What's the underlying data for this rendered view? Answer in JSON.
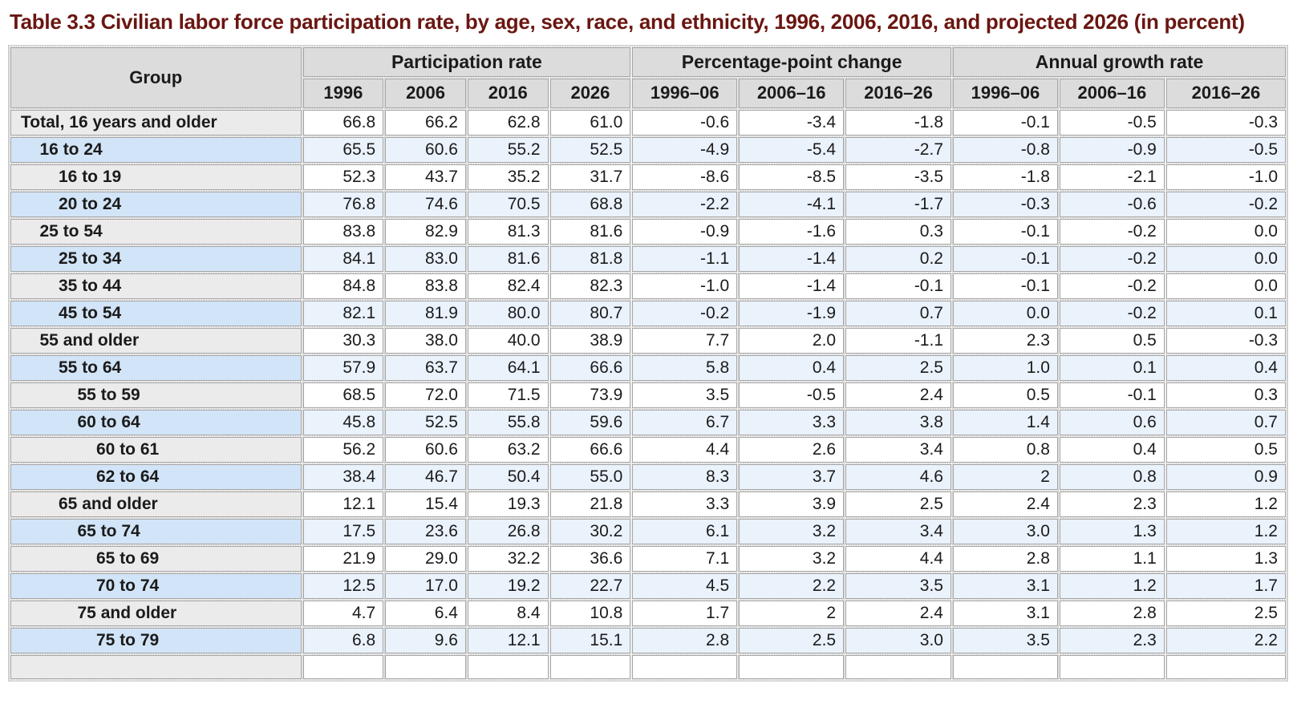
{
  "title": "Table 3.3 Civilian labor force participation rate, by age, sex, race, and ethnicity, 1996, 2006, 2016, and projected 2026 (in percent)",
  "columns": {
    "group_header": "Group",
    "spans": [
      {
        "label": "Participation rate",
        "sub": [
          "1996",
          "2006",
          "2016",
          "2026"
        ]
      },
      {
        "label": "Percentage-point change",
        "sub": [
          "1996–06",
          "2006–16",
          "2016–26"
        ]
      },
      {
        "label": "Annual growth rate",
        "sub": [
          "1996–06",
          "2006–16",
          "2016–26"
        ]
      }
    ]
  },
  "rows": [
    {
      "group": "Total, 16 years and older",
      "indent": 0,
      "values": [
        "66.8",
        "66.2",
        "62.8",
        "61.0",
        "-0.6",
        "-3.4",
        "-1.8",
        "-0.1",
        "-0.5",
        "-0.3"
      ]
    },
    {
      "group": "16 to 24",
      "indent": 1,
      "values": [
        "65.5",
        "60.6",
        "55.2",
        "52.5",
        "-4.9",
        "-5.4",
        "-2.7",
        "-0.8",
        "-0.9",
        "-0.5"
      ]
    },
    {
      "group": "16 to 19",
      "indent": 2,
      "values": [
        "52.3",
        "43.7",
        "35.2",
        "31.7",
        "-8.6",
        "-8.5",
        "-3.5",
        "-1.8",
        "-2.1",
        "-1.0"
      ]
    },
    {
      "group": "20 to 24",
      "indent": 2,
      "values": [
        "76.8",
        "74.6",
        "70.5",
        "68.8",
        "-2.2",
        "-4.1",
        "-1.7",
        "-0.3",
        "-0.6",
        "-0.2"
      ]
    },
    {
      "group": "25 to 54",
      "indent": 1,
      "values": [
        "83.8",
        "82.9",
        "81.3",
        "81.6",
        "-0.9",
        "-1.6",
        "0.3",
        "-0.1",
        "-0.2",
        "0.0"
      ]
    },
    {
      "group": "25 to 34",
      "indent": 2,
      "values": [
        "84.1",
        "83.0",
        "81.6",
        "81.8",
        "-1.1",
        "-1.4",
        "0.2",
        "-0.1",
        "-0.2",
        "0.0"
      ]
    },
    {
      "group": "35 to 44",
      "indent": 2,
      "values": [
        "84.8",
        "83.8",
        "82.4",
        "82.3",
        "-1.0",
        "-1.4",
        "-0.1",
        "-0.1",
        "-0.2",
        "0.0"
      ]
    },
    {
      "group": "45 to 54",
      "indent": 2,
      "values": [
        "82.1",
        "81.9",
        "80.0",
        "80.7",
        "-0.2",
        "-1.9",
        "0.7",
        "0.0",
        "-0.2",
        "0.1"
      ]
    },
    {
      "group": "55 and older",
      "indent": 1,
      "values": [
        "30.3",
        "38.0",
        "40.0",
        "38.9",
        "7.7",
        "2.0",
        "-1.1",
        "2.3",
        "0.5",
        "-0.3"
      ]
    },
    {
      "group": "55 to 64",
      "indent": 2,
      "values": [
        "57.9",
        "63.7",
        "64.1",
        "66.6",
        "5.8",
        "0.4",
        "2.5",
        "1.0",
        "0.1",
        "0.4"
      ]
    },
    {
      "group": "55 to 59",
      "indent": 3,
      "values": [
        "68.5",
        "72.0",
        "71.5",
        "73.9",
        "3.5",
        "-0.5",
        "2.4",
        "0.5",
        "-0.1",
        "0.3"
      ]
    },
    {
      "group": "60 to 64",
      "indent": 3,
      "values": [
        "45.8",
        "52.5",
        "55.8",
        "59.6",
        "6.7",
        "3.3",
        "3.8",
        "1.4",
        "0.6",
        "0.7"
      ]
    },
    {
      "group": "60 to 61",
      "indent": 4,
      "values": [
        "56.2",
        "60.6",
        "63.2",
        "66.6",
        "4.4",
        "2.6",
        "3.4",
        "0.8",
        "0.4",
        "0.5"
      ]
    },
    {
      "group": "62 to 64",
      "indent": 4,
      "values": [
        "38.4",
        "46.7",
        "50.4",
        "55.0",
        "8.3",
        "3.7",
        "4.6",
        "2",
        "0.8",
        "0.9"
      ]
    },
    {
      "group": "65 and older",
      "indent": 2,
      "values": [
        "12.1",
        "15.4",
        "19.3",
        "21.8",
        "3.3",
        "3.9",
        "2.5",
        "2.4",
        "2.3",
        "1.2"
      ]
    },
    {
      "group": "65 to 74",
      "indent": 3,
      "values": [
        "17.5",
        "23.6",
        "26.8",
        "30.2",
        "6.1",
        "3.2",
        "3.4",
        "3.0",
        "1.3",
        "1.2"
      ]
    },
    {
      "group": "65 to 69",
      "indent": 4,
      "values": [
        "21.9",
        "29.0",
        "32.2",
        "36.6",
        "7.1",
        "3.2",
        "4.4",
        "2.8",
        "1.1",
        "1.3"
      ]
    },
    {
      "group": "70 to 74",
      "indent": 4,
      "values": [
        "12.5",
        "17.0",
        "19.2",
        "22.7",
        "4.5",
        "2.2",
        "3.5",
        "3.1",
        "1.2",
        "1.7"
      ]
    },
    {
      "group": "75 and older",
      "indent": 3,
      "values": [
        "4.7",
        "6.4",
        "8.4",
        "10.8",
        "1.7",
        "2",
        "2.4",
        "3.1",
        "2.8",
        "2.5"
      ]
    },
    {
      "group": "75 to 79",
      "indent": 4,
      "values": [
        "6.8",
        "9.6",
        "12.1",
        "15.1",
        "2.8",
        "2.5",
        "3.0",
        "3.5",
        "2.3",
        "2.2"
      ]
    }
  ],
  "clipped_partial_row": true,
  "colors": {
    "title": "#6a1611",
    "header_bg": "#dcdcdc",
    "group_plain_bg": "#ebebeb",
    "group_blue_bg": "#d2e4f7",
    "data_plain_bg": "#ffffff",
    "data_blue_bg": "#eaf2fc",
    "cell_border": "#a6a6a6"
  }
}
